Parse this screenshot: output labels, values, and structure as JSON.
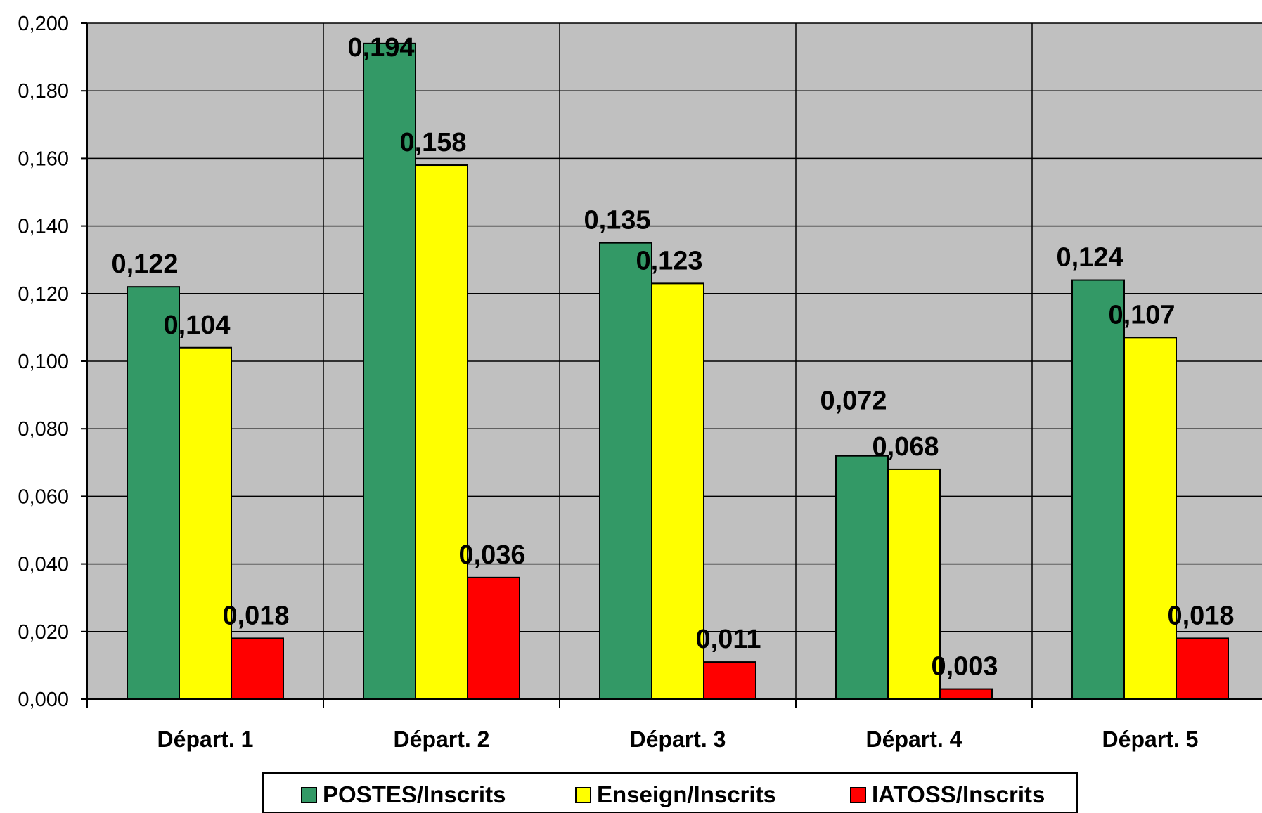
{
  "chart_data": {
    "type": "bar",
    "categories": [
      "Départ. 1",
      "Départ. 2",
      "Départ. 3",
      "Départ. 4",
      "Départ. 5"
    ],
    "series": [
      {
        "name": "POSTES/Inscrits",
        "color": "#339966",
        "values": [
          0.122,
          0.194,
          0.135,
          0.072,
          0.124
        ],
        "labels": [
          "0,122",
          "0,194",
          "0,135",
          "0,072",
          "0,124"
        ]
      },
      {
        "name": "Enseign/Inscrits",
        "color": "#FFFF00",
        "values": [
          0.104,
          0.158,
          0.123,
          0.068,
          0.107
        ],
        "labels": [
          "0,104",
          "0,158",
          "0,123",
          "0,068",
          "0,107"
        ]
      },
      {
        "name": "IATOSS/Inscrits",
        "color": "#FF0000",
        "values": [
          0.018,
          0.036,
          0.011,
          0.003,
          0.018
        ],
        "labels": [
          "0,018",
          "0,036",
          "0,011",
          "0,003",
          "0,018"
        ]
      }
    ],
    "ylim": [
      0,
      0.2
    ],
    "yticks": [
      0,
      0.02,
      0.04,
      0.06,
      0.08,
      0.1,
      0.12,
      0.14,
      0.16,
      0.18,
      0.2
    ],
    "ytick_labels": [
      "0,000",
      "0,020",
      "0,040",
      "0,060",
      "0,080",
      "0,100",
      "0,120",
      "0,140",
      "0,160",
      "0,180",
      "0,200"
    ],
    "title": "",
    "xlabel": "",
    "ylabel": "",
    "grid": true,
    "plot_background": "#C0C0C0",
    "legend_position": "bottom"
  }
}
